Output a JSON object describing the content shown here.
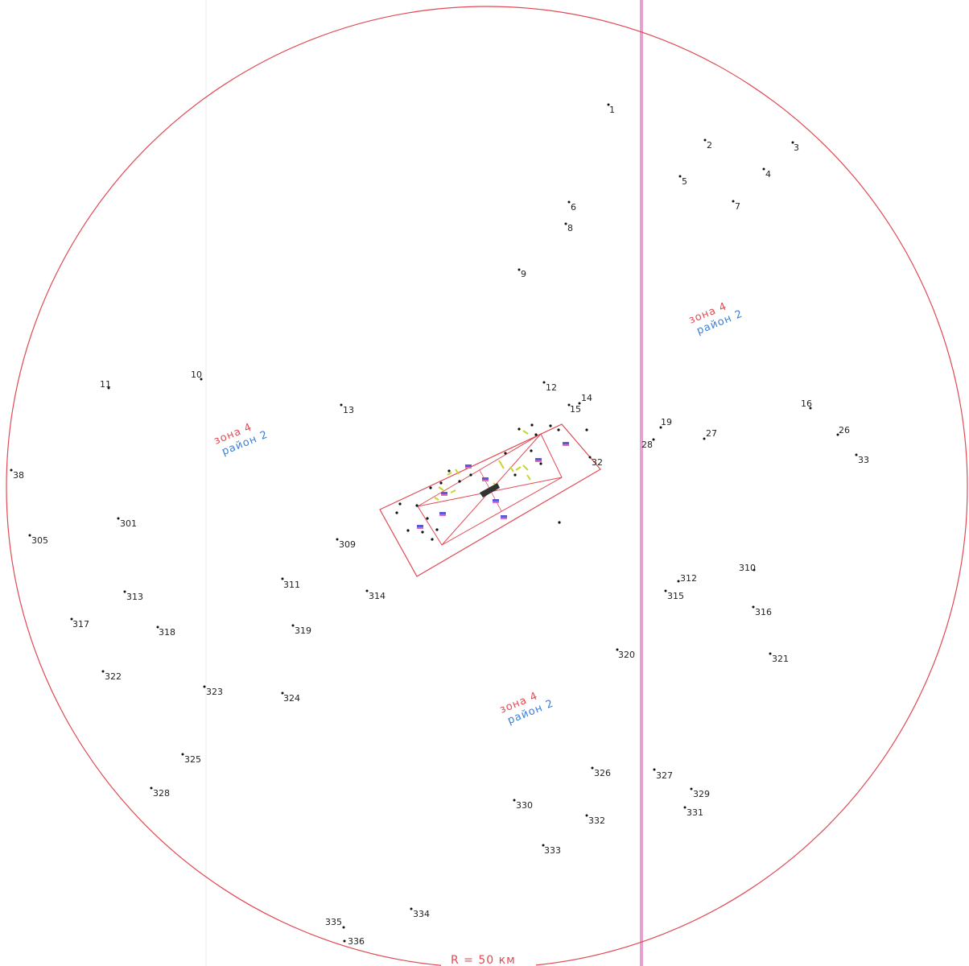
{
  "map": {
    "radius_label": "R = 50 км",
    "top_title": "",
    "colors": {
      "circle": "#e04a55",
      "zone_text": "#e04a55",
      "district_text": "#3a7fd5",
      "boundary_line": "#e8a0d0",
      "site_outline": "#e04a55",
      "points": "#111111"
    },
    "zones": [
      {
        "zone": "зона 4",
        "district": "район 2"
      },
      {
        "zone": "зона 4",
        "district": "район 2"
      },
      {
        "zone": "зона 4",
        "district": "район 2"
      }
    ],
    "points": [
      "1",
      "2",
      "3",
      "4",
      "5",
      "6",
      "7",
      "8",
      "9",
      "10",
      "11",
      "12",
      "13",
      "14",
      "15",
      "16",
      "19",
      "26",
      "27",
      "28",
      "32",
      "33",
      "38",
      "301",
      "305",
      "309",
      "310",
      "311",
      "312",
      "313",
      "314",
      "315",
      "316",
      "317",
      "318",
      "319",
      "320",
      "321",
      "322",
      "323",
      "324",
      "325",
      "326",
      "327",
      "328",
      "329",
      "330",
      "331",
      "332",
      "333",
      "334",
      "335",
      "336"
    ]
  }
}
